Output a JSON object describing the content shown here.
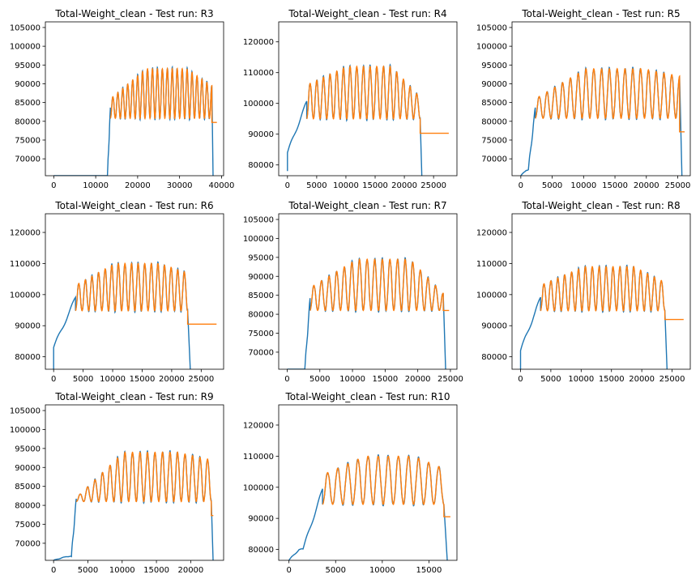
{
  "figure": {
    "colors": {
      "raw": "#1f77b4",
      "clean": "#ff7f0e",
      "axes": "#000000",
      "background": "#ffffff"
    }
  },
  "chart_data": [
    {
      "type": "line",
      "title": "Total-Weight_clean - Test run: R3",
      "xlim": [
        -2000,
        40500
      ],
      "ylim": [
        65500,
        106500
      ],
      "xticks": [
        0,
        10000,
        20000,
        30000,
        40000
      ],
      "xtick_labels": [
        "0",
        "10000",
        "20000",
        "30000",
        "40000"
      ],
      "yticks": [
        70000,
        75000,
        80000,
        85000,
        90000,
        95000,
        100000,
        105000
      ],
      "ytick_labels": [
        "70000",
        "75000",
        "80000",
        "85000",
        "90000",
        "95000",
        "100000",
        "105000"
      ],
      "signal": {
        "rise_start": 12800,
        "rise_end": 13300,
        "plateau_start": 13500,
        "plateau_end": 37700,
        "drop_end": 38000,
        "start_level": 65500,
        "osc_min": 80800,
        "peak_start": 86000,
        "peak_max": 94000,
        "peak_end": 89500,
        "cycles": 20.5,
        "tail_start": 37700,
        "tail_end": 38900,
        "tail_level": 79700
      }
    },
    {
      "type": "line",
      "title": "Total-Weight_clean - Test run: R4",
      "xlim": [
        -1500,
        29000
      ],
      "ylim": [
        76500,
        126500
      ],
      "xticks": [
        0,
        5000,
        10000,
        15000,
        20000,
        25000
      ],
      "xtick_labels": [
        "0",
        "5000",
        "10000",
        "15000",
        "20000",
        "25000"
      ],
      "yticks": [
        80000,
        90000,
        100000,
        110000,
        120000
      ],
      "ytick_labels": [
        "80000",
        "90000",
        "100000",
        "110000",
        "120000"
      ],
      "signal": {
        "rise_start": 0,
        "rise_end": 3000,
        "plateau_start": 3300,
        "plateau_end": 22700,
        "drop_end": 23000,
        "start_level": 78000,
        "pre_level": 84000,
        "osc_min": 95000,
        "peak_start": 106000,
        "peak_max": 112000,
        "peak_end": 102000,
        "cycles": 17,
        "tail_start": 22700,
        "tail_end": 27600,
        "tail_level": 90300
      }
    },
    {
      "type": "line",
      "title": "Total-Weight_clean - Test run: R5",
      "xlim": [
        -1400,
        27000
      ],
      "ylim": [
        65500,
        106500
      ],
      "xticks": [
        0,
        5000,
        10000,
        15000,
        20000,
        25000
      ],
      "xtick_labels": [
        "0",
        "5000",
        "10000",
        "15000",
        "20000",
        "25000"
      ],
      "yticks": [
        70000,
        75000,
        80000,
        85000,
        90000,
        95000,
        100000,
        105000
      ],
      "ytick_labels": [
        "70000",
        "75000",
        "80000",
        "85000",
        "90000",
        "95000",
        "100000",
        "105000"
      ],
      "signal": {
        "rise_start": 1200,
        "rise_end": 2100,
        "plateau_start": 2300,
        "plateau_end": 25300,
        "drop_end": 25700,
        "start_level": 65500,
        "pre_level": 67000,
        "osc_min": 80800,
        "peak_start": 86000,
        "peak_max": 94000,
        "peak_end": 92000,
        "cycles": 18.5,
        "tail_start": 25300,
        "tail_end": 26100,
        "tail_level": 77200
      }
    },
    {
      "type": "line",
      "title": "Total-Weight_clean - Test run: R6",
      "xlim": [
        -1400,
        28800
      ],
      "ylim": [
        76000,
        126000
      ],
      "xticks": [
        0,
        5000,
        10000,
        15000,
        20000,
        25000
      ],
      "xtick_labels": [
        "0",
        "5000",
        "10000",
        "15000",
        "20000",
        "25000"
      ],
      "yticks": [
        80000,
        90000,
        100000,
        110000,
        120000
      ],
      "ytick_labels": [
        "80000",
        "90000",
        "100000",
        "110000",
        "120000"
      ],
      "signal": {
        "rise_start": 0,
        "rise_end": 3400,
        "plateau_start": 3700,
        "plateau_end": 22700,
        "drop_end": 23200,
        "start_level": 76000,
        "pre_level": 83000,
        "osc_min": 94800,
        "peak_start": 103000,
        "peak_max": 110000,
        "peak_end": 107000,
        "cycles": 17,
        "tail_start": 22700,
        "tail_end": 27600,
        "tail_level": 90500
      }
    },
    {
      "type": "line",
      "title": "Total-Weight_clean - Test run: R7",
      "xlim": [
        -1300,
        26000
      ],
      "ylim": [
        65500,
        106500
      ],
      "xticks": [
        0,
        5000,
        10000,
        15000,
        20000,
        25000
      ],
      "xtick_labels": [
        "0",
        "5000",
        "10000",
        "15000",
        "20000",
        "25000"
      ],
      "yticks": [
        70000,
        75000,
        80000,
        85000,
        90000,
        95000,
        100000,
        105000
      ],
      "ytick_labels": [
        "70000",
        "75000",
        "80000",
        "85000",
        "90000",
        "95000",
        "100000",
        "105000"
      ],
      "signal": {
        "rise_start": 2700,
        "rise_end": 3300,
        "plateau_start": 3500,
        "plateau_end": 23900,
        "drop_end": 24300,
        "start_level": 65500,
        "osc_min": 81000,
        "peak_start": 87000,
        "peak_max": 94500,
        "peak_end": 85500,
        "cycles": 17.5,
        "tail_start": 23900,
        "tail_end": 24800,
        "tail_level": 81000
      }
    },
    {
      "type": "line",
      "title": "Total-Weight_clean - Test run: R8",
      "xlim": [
        -1400,
        28000
      ],
      "ylim": [
        76000,
        126000
      ],
      "xticks": [
        0,
        5000,
        10000,
        15000,
        20000,
        25000
      ],
      "xtick_labels": [
        "0",
        "5000",
        "10000",
        "15000",
        "20000",
        "25000"
      ],
      "yticks": [
        80000,
        90000,
        100000,
        110000,
        120000
      ],
      "ytick_labels": [
        "80000",
        "90000",
        "100000",
        "110000",
        "120000"
      ],
      "signal": {
        "rise_start": 0,
        "rise_end": 3100,
        "plateau_start": 3300,
        "plateau_end": 23800,
        "drop_end": 24200,
        "start_level": 76000,
        "pre_level": 82000,
        "osc_min": 94800,
        "peak_start": 103000,
        "peak_max": 109000,
        "peak_end": 104000,
        "cycles": 18,
        "tail_start": 23800,
        "tail_end": 26900,
        "tail_level": 92000
      }
    },
    {
      "type": "line",
      "title": "Total-Weight_clean - Test run: R9",
      "xlim": [
        -1200,
        24800
      ],
      "ylim": [
        65500,
        106500
      ],
      "xticks": [
        0,
        5000,
        10000,
        15000,
        20000
      ],
      "xtick_labels": [
        "0",
        "5000",
        "10000",
        "15000",
        "20000"
      ],
      "yticks": [
        70000,
        75000,
        80000,
        85000,
        90000,
        95000,
        100000,
        105000
      ],
      "ytick_labels": [
        "70000",
        "75000",
        "80000",
        "85000",
        "90000",
        "95000",
        "100000",
        "105000"
      ],
      "signal": {
        "rise_start": 2600,
        "rise_end": 3100,
        "plateau_start": 3300,
        "plateau_end": 23000,
        "drop_end": 23300,
        "start_level": 65500,
        "pre_level": 66500,
        "osc_min": 81000,
        "peak_start": 82000,
        "peak_max": 94000,
        "peak_end": 92000,
        "cycles": 18,
        "tail_start": 23000,
        "tail_end": 23300,
        "tail_level": 77300
      }
    },
    {
      "type": "line",
      "title": "Total-Weight_clean - Test run: R10",
      "xlim": [
        -1100,
        18000
      ],
      "ylim": [
        76500,
        126500
      ],
      "xticks": [
        0,
        5000,
        10000,
        15000
      ],
      "xtick_labels": [
        "0",
        "5000",
        "10000",
        "15000"
      ],
      "yticks": [
        80000,
        90000,
        100000,
        110000,
        120000
      ],
      "ytick_labels": [
        "80000",
        "90000",
        "100000",
        "110000",
        "120000"
      ],
      "signal": {
        "rise_start": 1500,
        "rise_end": 3400,
        "plateau_start": 3600,
        "plateau_end": 16600,
        "drop_end": 17000,
        "start_level": 76500,
        "pre_level": 80000,
        "osc_min": 94500,
        "peak_start": 104000,
        "peak_max": 110000,
        "peak_end": 106000,
        "cycles": 12,
        "tail_start": 16600,
        "tail_end": 17300,
        "tail_level": 90500
      }
    }
  ]
}
